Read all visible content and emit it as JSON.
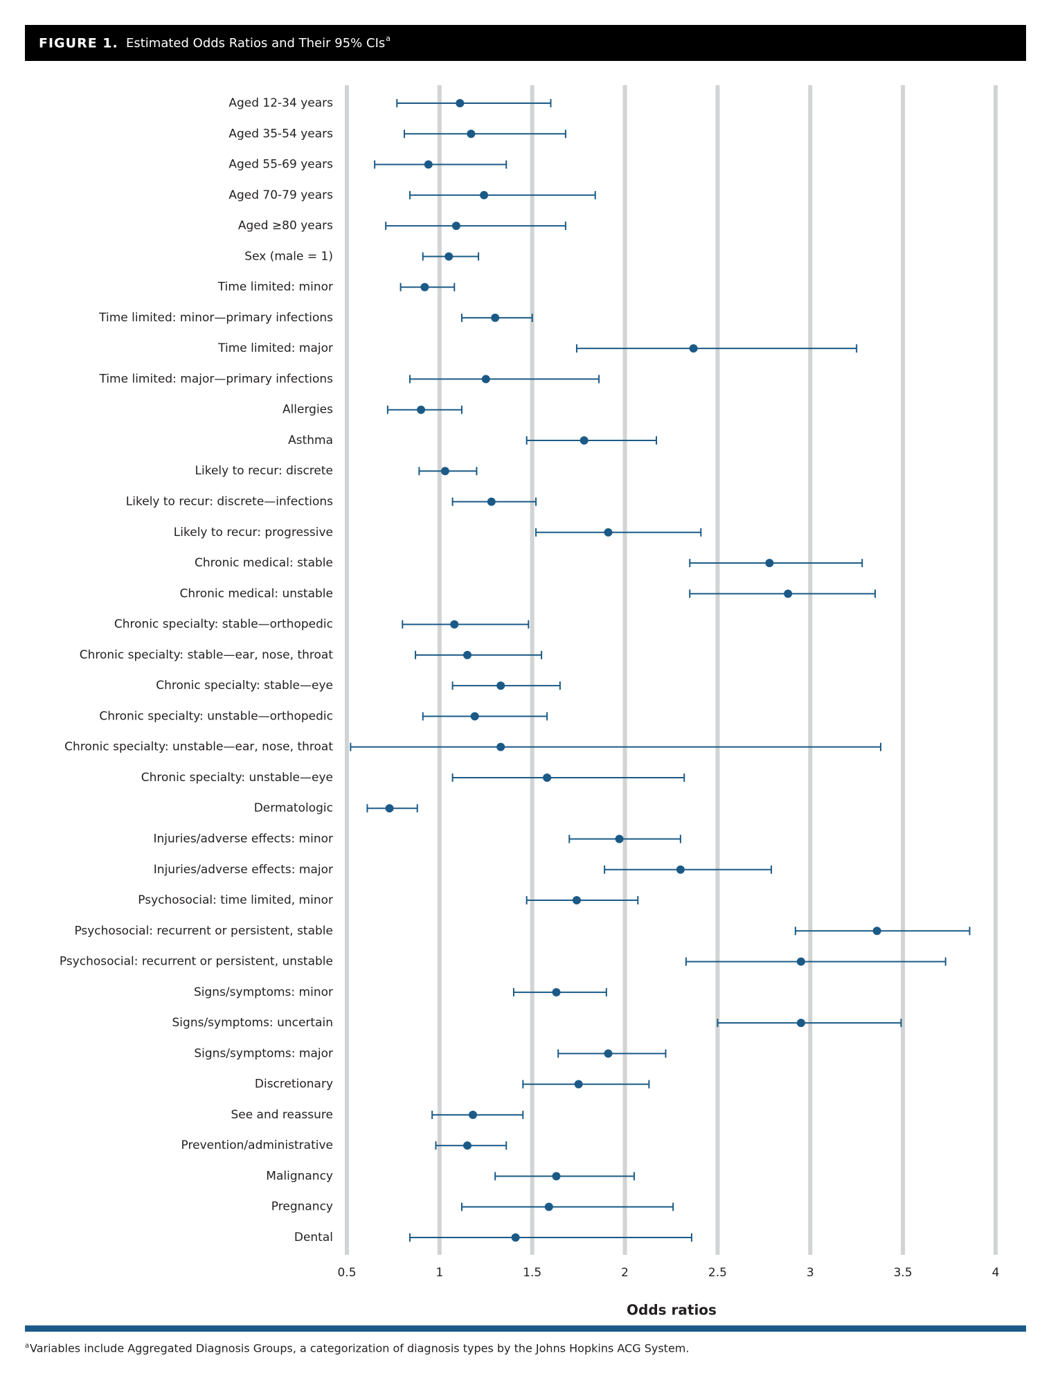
{
  "chart_data": {
    "type": "forest",
    "figure_label": "FIGURE 1.",
    "title": "Estimated Odds Ratios and Their 95% CIs",
    "title_superscript": "a",
    "x_label": "Odds ratios",
    "footnote_marker": "a",
    "footnote": "Variables include Aggregated Diagnosis Groups, a categorization of diagnosis types by the Johns Hopkins ACG System.",
    "categories": [
      "Aged 12-34 years",
      "Aged 35-54 years",
      "Aged 55-69 years",
      "Aged 70-79 years",
      "Aged ≥80 years",
      "Sex (male = 1)",
      "Time limited: minor",
      "Time limited: minor—primary infections",
      "Time limited: major",
      "Time limited: major—primary infections",
      "Allergies",
      "Asthma",
      "Likely to recur: discrete",
      "Likely to recur: discrete—infections",
      "Likely to recur: progressive",
      "Chronic medical: stable",
      "Chronic medical: unstable",
      "Chronic specialty: stable—orthopedic",
      "Chronic specialty: stable—ear, nose, throat",
      "Chronic specialty: stable—eye",
      "Chronic specialty: unstable—orthopedic",
      "Chronic specialty: unstable—ear, nose, throat",
      "Chronic specialty: unstable—eye",
      "Dermatologic",
      "Injuries/adverse effects: minor",
      "Injuries/adverse effects: major",
      "Psychosocial: time limited, minor",
      "Psychosocial: recurrent or persistent, stable",
      "Psychosocial: recurrent or persistent, unstable",
      "Signs/symptoms: minor",
      "Signs/symptoms: uncertain",
      "Signs/symptoms: major",
      "Discretionary",
      "See and reassure",
      "Prevention/administrative",
      "Malignancy",
      "Pregnancy",
      "Dental"
    ],
    "values": [
      1.11,
      1.17,
      0.94,
      1.24,
      1.09,
      1.05,
      0.92,
      1.3,
      2.37,
      1.25,
      0.9,
      1.78,
      1.03,
      1.28,
      1.91,
      2.78,
      2.88,
      1.08,
      1.15,
      1.33,
      1.19,
      1.33,
      1.58,
      0.73,
      1.97,
      2.3,
      1.74,
      3.36,
      2.95,
      1.63,
      2.95,
      1.91,
      1.75,
      1.18,
      1.15,
      1.63,
      1.59,
      1.41
    ],
    "lower": [
      0.77,
      0.81,
      0.65,
      0.84,
      0.71,
      0.91,
      0.79,
      1.12,
      1.74,
      0.84,
      0.72,
      1.47,
      0.89,
      1.07,
      1.52,
      2.35,
      2.35,
      0.8,
      0.87,
      1.07,
      0.91,
      0.52,
      1.07,
      0.61,
      1.7,
      1.89,
      1.47,
      2.92,
      2.33,
      1.4,
      2.5,
      1.64,
      1.45,
      0.96,
      0.98,
      1.3,
      1.12,
      0.84
    ],
    "upper": [
      1.6,
      1.68,
      1.36,
      1.84,
      1.68,
      1.21,
      1.08,
      1.5,
      3.25,
      1.86,
      1.12,
      2.17,
      1.2,
      1.52,
      2.41,
      3.28,
      3.35,
      1.48,
      1.55,
      1.65,
      1.58,
      3.38,
      2.32,
      0.88,
      2.3,
      2.79,
      2.07,
      3.86,
      3.73,
      1.9,
      3.49,
      2.22,
      2.13,
      1.45,
      1.36,
      2.05,
      2.26,
      2.36
    ],
    "color": "#1b5a87",
    "xlim": [
      0.5,
      4
    ],
    "xticks": [
      0.5,
      1,
      1.5,
      2,
      2.5,
      3,
      3.5,
      4
    ],
    "grid": true
  }
}
